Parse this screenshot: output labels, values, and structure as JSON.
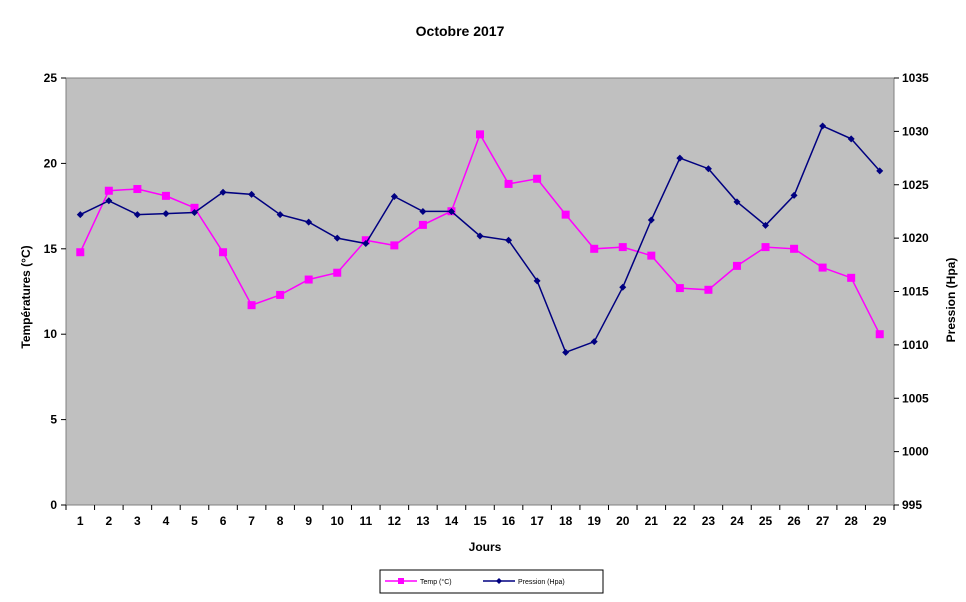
{
  "chart_data": {
    "type": "line",
    "title": "Octobre 2017",
    "xlabel": "Jours",
    "ylabel_left": "Températures  (°C)",
    "ylabel_right": "Pression  (Hpa)",
    "x": [
      1,
      2,
      3,
      4,
      5,
      6,
      7,
      8,
      9,
      10,
      11,
      12,
      13,
      14,
      15,
      16,
      17,
      18,
      19,
      20,
      21,
      22,
      23,
      24,
      25,
      26,
      27,
      28,
      29
    ],
    "y_left": {
      "min": 0,
      "max": 25,
      "ticks": [
        0,
        5,
        10,
        15,
        20,
        25
      ]
    },
    "y_right": {
      "min": 995,
      "max": 1035,
      "ticks": [
        995,
        1000,
        1005,
        1010,
        1015,
        1020,
        1025,
        1030,
        1035
      ]
    },
    "plot_background": "#c0c0c0",
    "grid": false,
    "legend_position": "bottom",
    "series": [
      {
        "name": "Temp (°C)",
        "axis": "left",
        "color": "#ff00ff",
        "marker": "square",
        "values": [
          14.8,
          18.4,
          18.5,
          18.1,
          17.4,
          14.8,
          11.7,
          12.3,
          13.2,
          13.6,
          15.5,
          15.2,
          16.4,
          17.2,
          21.7,
          18.8,
          19.1,
          17.0,
          15.0,
          15.1,
          14.6,
          12.7,
          12.6,
          14.0,
          15.1,
          15.0,
          13.9,
          13.3,
          10.0
        ]
      },
      {
        "name": "Pression (Hpa)",
        "axis": "right",
        "color": "#000080",
        "marker": "diamond",
        "values": [
          1022.2,
          1023.5,
          1022.2,
          1022.3,
          1022.4,
          1024.3,
          1024.1,
          1022.2,
          1021.5,
          1020.0,
          1019.5,
          1023.9,
          1022.5,
          1022.5,
          1020.2,
          1019.8,
          1016.0,
          1009.3,
          1010.3,
          1015.4,
          1021.7,
          1027.5,
          1026.5,
          1023.4,
          1021.2,
          1024.0,
          1030.5,
          1029.3,
          1026.3
        ]
      }
    ]
  }
}
